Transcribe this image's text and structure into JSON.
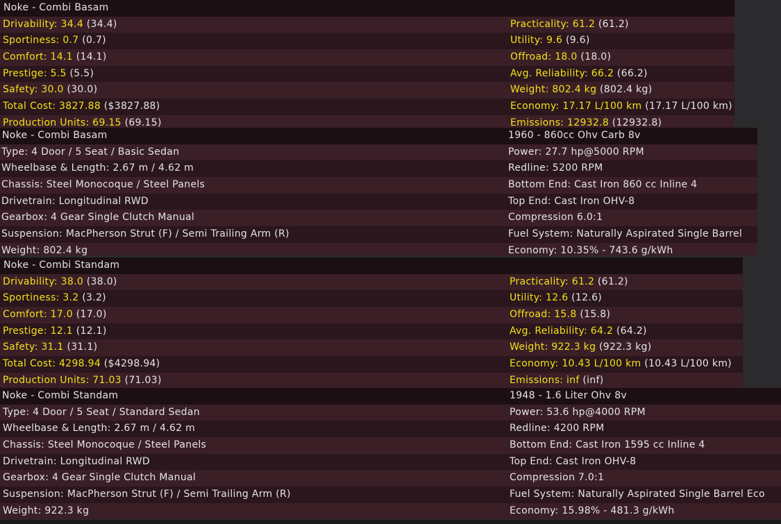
{
  "panels": [
    {
      "kind": "stats",
      "title": "Noke - Combi Basam",
      "left": [
        {
          "label": "Drivability: 34.4",
          "paren": " (34.4)"
        },
        {
          "label": "Sportiness: 0.7",
          "paren": " (0.7)"
        },
        {
          "label": "Comfort: 14.1",
          "paren": " (14.1)"
        },
        {
          "label": "Prestige: 5.5",
          "paren": " (5.5)"
        },
        {
          "label": "Safety: 30.0",
          "paren": " (30.0)"
        },
        {
          "label": "Total Cost: 3827.88",
          "paren": " ($3827.88)"
        },
        {
          "label": "Production Units: 69.15",
          "paren": " (69.15)"
        }
      ],
      "right": [
        {
          "label": "Practicality: 61.2",
          "paren": " (61.2)"
        },
        {
          "label": "Utility: 9.6",
          "paren": " (9.6)"
        },
        {
          "label": "Offroad: 18.0",
          "paren": " (18.0)"
        },
        {
          "label": "Avg. Reliability: 66.2",
          "paren": " (66.2)"
        },
        {
          "label": "Weight: 802.4 kg",
          "paren": " (802.4 kg)"
        },
        {
          "label": "Economy: 17.17 L/100 km",
          "paren": " (17.17 L/100 km)"
        },
        {
          "label": "Emissions: 12932.8",
          "paren": " (12932.8)"
        }
      ]
    },
    {
      "kind": "specs",
      "title": "Noke - Combi Basam",
      "title_right": "1960 - 860cc Ohv Carb 8v",
      "left": [
        "Type: 4 Door / 5 Seat / Basic Sedan",
        "Wheelbase & Length: 2.67 m / 4.62 m",
        "Chassis: Steel Monocoque / Steel Panels",
        "Drivetrain: Longitudinal RWD",
        "Gearbox: 4 Gear Single Clutch Manual",
        "Suspension: MacPherson Strut (F) / Semi Trailing Arm (R)",
        "Weight: 802.4 kg"
      ],
      "right": [
        "Power: 27.7 hp@5000 RPM",
        "Redline: 5200 RPM",
        "Bottom End: Cast Iron 860 cc Inline 4",
        "Top End: Cast Iron OHV-8",
        "Compression 6.0:1",
        "Fuel System: Naturally Aspirated Single Barrel",
        "Economy: 10.35% - 743.6 g/kWh"
      ]
    },
    {
      "kind": "stats",
      "title": "Noke - Combi Standam",
      "left": [
        {
          "label": "Drivability: 38.0",
          "paren": " (38.0)"
        },
        {
          "label": "Sportiness: 3.2",
          "paren": " (3.2)"
        },
        {
          "label": "Comfort: 17.0",
          "paren": " (17.0)"
        },
        {
          "label": "Prestige: 12.1",
          "paren": " (12.1)"
        },
        {
          "label": "Safety: 31.1",
          "paren": " (31.1)"
        },
        {
          "label": "Total Cost: 4298.94",
          "paren": " ($4298.94)"
        },
        {
          "label": "Production Units: 71.03",
          "paren": " (71.03)"
        }
      ],
      "right": [
        {
          "label": "Practicality: 61.2",
          "paren": " (61.2)"
        },
        {
          "label": "Utility: 12.6",
          "paren": " (12.6)"
        },
        {
          "label": "Offroad: 15.8",
          "paren": " (15.8)"
        },
        {
          "label": "Avg. Reliability: 64.2",
          "paren": " (64.2)"
        },
        {
          "label": "Weight: 922.3 kg",
          "paren": " (922.3 kg)"
        },
        {
          "label": "Economy: 10.43 L/100 km",
          "paren": " (10.43 L/100 km)"
        },
        {
          "label": "Emissions: inf",
          "paren": " (inf)"
        }
      ]
    },
    {
      "kind": "specs",
      "title": "Noke - Combi Standam",
      "title_right": "1948 - 1.6 Liter Ohv 8v",
      "left": [
        "Type: 4 Door / 5 Seat / Standard Sedan",
        "Wheelbase & Length: 2.67 m / 4.62 m",
        "Chassis: Steel Monocoque / Steel Panels",
        "Drivetrain: Longitudinal RWD",
        "Gearbox: 4 Gear Single Clutch Manual",
        "Suspension: MacPherson Strut (F) / Semi Trailing Arm (R)",
        "Weight: 922.3 kg"
      ],
      "right": [
        "Power: 53.6 hp@4000 RPM",
        "Redline: 4200 RPM",
        "Bottom End: Cast Iron 1595 cc Inline 4",
        "Top End: Cast Iron OHV-8",
        "Compression 7.0:1",
        "Fuel System: Naturally Aspirated Single Barrel Eco",
        "Economy: 15.98% - 481.3 g/kWh"
      ]
    }
  ]
}
